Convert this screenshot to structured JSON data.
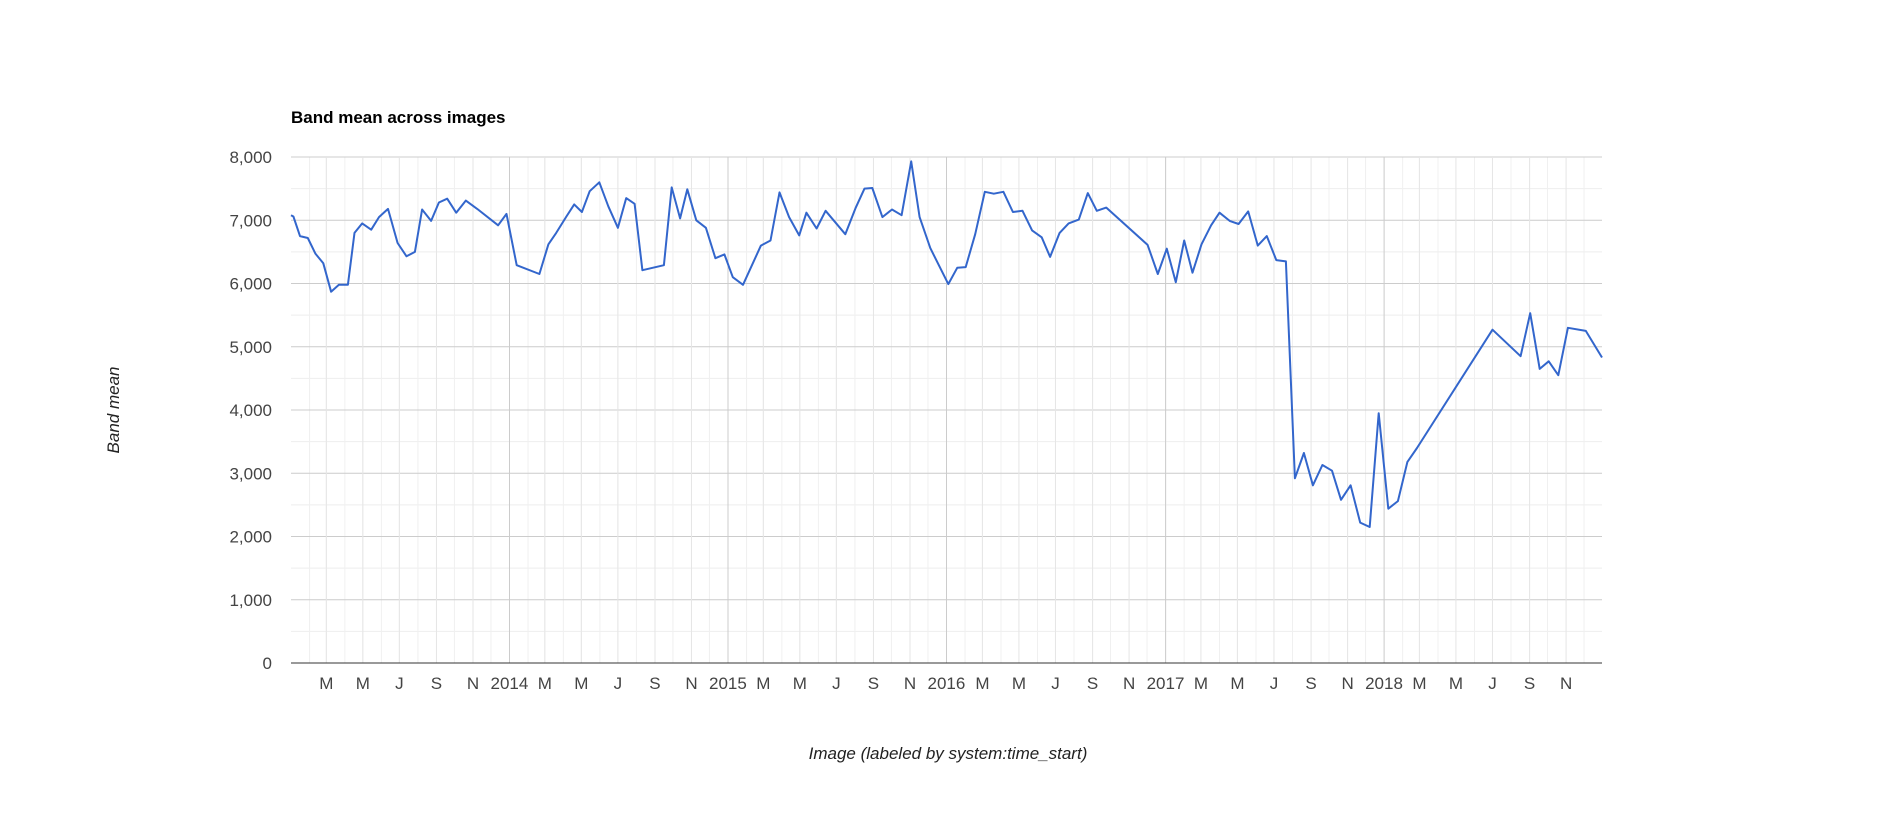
{
  "chart_data": {
    "type": "line",
    "title": "Band mean across images",
    "xlabel": "Image (labeled by system:time_start)",
    "ylabel": "Band mean",
    "ylim": [
      0,
      8000
    ],
    "yticks": [
      0,
      1000,
      2000,
      3000,
      4000,
      5000,
      6000,
      7000,
      8000
    ],
    "ytick_labels": [
      "0",
      "1,000",
      "2,000",
      "3,000",
      "4,000",
      "5,000",
      "6,000",
      "7,000",
      "8,000"
    ],
    "xlim": [
      "2013-01-01",
      "2018-12-31"
    ],
    "xticks": [
      {
        "date": "2013-03-01",
        "label": "M",
        "major": false
      },
      {
        "date": "2013-05-01",
        "label": "M",
        "major": false
      },
      {
        "date": "2013-07-01",
        "label": "J",
        "major": false
      },
      {
        "date": "2013-09-01",
        "label": "S",
        "major": false
      },
      {
        "date": "2013-11-01",
        "label": "N",
        "major": false
      },
      {
        "date": "2014-01-01",
        "label": "2014",
        "major": true
      },
      {
        "date": "2014-03-01",
        "label": "M",
        "major": false
      },
      {
        "date": "2014-05-01",
        "label": "M",
        "major": false
      },
      {
        "date": "2014-07-01",
        "label": "J",
        "major": false
      },
      {
        "date": "2014-09-01",
        "label": "S",
        "major": false
      },
      {
        "date": "2014-11-01",
        "label": "N",
        "major": false
      },
      {
        "date": "2015-01-01",
        "label": "2015",
        "major": true
      },
      {
        "date": "2015-03-01",
        "label": "M",
        "major": false
      },
      {
        "date": "2015-05-01",
        "label": "M",
        "major": false
      },
      {
        "date": "2015-07-01",
        "label": "J",
        "major": false
      },
      {
        "date": "2015-09-01",
        "label": "S",
        "major": false
      },
      {
        "date": "2015-11-01",
        "label": "N",
        "major": false
      },
      {
        "date": "2016-01-01",
        "label": "2016",
        "major": true
      },
      {
        "date": "2016-03-01",
        "label": "M",
        "major": false
      },
      {
        "date": "2016-05-01",
        "label": "M",
        "major": false
      },
      {
        "date": "2016-07-01",
        "label": "J",
        "major": false
      },
      {
        "date": "2016-09-01",
        "label": "S",
        "major": false
      },
      {
        "date": "2016-11-01",
        "label": "N",
        "major": false
      },
      {
        "date": "2017-01-01",
        "label": "2017",
        "major": true
      },
      {
        "date": "2017-03-01",
        "label": "M",
        "major": false
      },
      {
        "date": "2017-05-01",
        "label": "M",
        "major": false
      },
      {
        "date": "2017-07-01",
        "label": "J",
        "major": false
      },
      {
        "date": "2017-09-01",
        "label": "S",
        "major": false
      },
      {
        "date": "2017-11-01",
        "label": "N",
        "major": false
      },
      {
        "date": "2018-01-01",
        "label": "2018",
        "major": true
      },
      {
        "date": "2018-03-01",
        "label": "M",
        "major": false
      },
      {
        "date": "2018-05-01",
        "label": "M",
        "major": false
      },
      {
        "date": "2018-07-01",
        "label": "J",
        "major": false
      },
      {
        "date": "2018-09-01",
        "label": "S",
        "major": false
      },
      {
        "date": "2018-11-01",
        "label": "N",
        "major": false
      }
    ],
    "grid": true,
    "legend": "none",
    "series": [
      {
        "color": "#3366cc",
        "points": [
          [
            "2013-01-01",
            7080
          ],
          [
            "2013-01-05",
            7060
          ],
          [
            "2013-01-16",
            6750
          ],
          [
            "2013-01-29",
            6720
          ],
          [
            "2013-02-11",
            6470
          ],
          [
            "2013-02-24",
            6320
          ],
          [
            "2013-03-09",
            5870
          ],
          [
            "2013-03-22",
            5980
          ],
          [
            "2013-04-06",
            5980
          ],
          [
            "2013-04-17",
            6800
          ],
          [
            "2013-04-30",
            6950
          ],
          [
            "2013-05-15",
            6850
          ],
          [
            "2013-05-28",
            7050
          ],
          [
            "2013-06-12",
            7180
          ],
          [
            "2013-06-28",
            6640
          ],
          [
            "2013-07-13",
            6430
          ],
          [
            "2013-07-27",
            6500
          ],
          [
            "2013-08-08",
            7170
          ],
          [
            "2013-08-23",
            6990
          ],
          [
            "2013-09-05",
            7280
          ],
          [
            "2013-09-19",
            7340
          ],
          [
            "2013-10-04",
            7120
          ],
          [
            "2013-10-20",
            7310
          ],
          [
            "2013-11-08",
            7180
          ],
          [
            "2013-12-13",
            6920
          ],
          [
            "2013-12-27",
            7100
          ],
          [
            "2014-01-13",
            6290
          ],
          [
            "2014-02-20",
            6150
          ],
          [
            "2014-03-07",
            6620
          ],
          [
            "2014-03-20",
            6800
          ],
          [
            "2014-04-06",
            7060
          ],
          [
            "2014-04-19",
            7250
          ],
          [
            "2014-05-02",
            7130
          ],
          [
            "2014-05-15",
            7460
          ],
          [
            "2014-05-31",
            7600
          ],
          [
            "2014-06-15",
            7220
          ],
          [
            "2014-07-01",
            6880
          ],
          [
            "2014-07-15",
            7350
          ],
          [
            "2014-07-29",
            7260
          ],
          [
            "2014-08-11",
            6210
          ],
          [
            "2014-09-16",
            6290
          ],
          [
            "2014-09-29",
            7520
          ],
          [
            "2014-10-13",
            7030
          ],
          [
            "2014-10-25",
            7490
          ],
          [
            "2014-11-09",
            7000
          ],
          [
            "2014-11-25",
            6880
          ],
          [
            "2014-12-11",
            6400
          ],
          [
            "2014-12-26",
            6460
          ],
          [
            "2015-01-09",
            6100
          ],
          [
            "2015-01-26",
            5980
          ],
          [
            "2015-02-25",
            6600
          ],
          [
            "2015-03-13",
            6680
          ],
          [
            "2015-03-28",
            7440
          ],
          [
            "2015-04-13",
            7050
          ],
          [
            "2015-04-30",
            6760
          ],
          [
            "2015-05-12",
            7120
          ],
          [
            "2015-05-29",
            6870
          ],
          [
            "2015-06-13",
            7150
          ],
          [
            "2015-07-16",
            6780
          ],
          [
            "2015-08-02",
            7190
          ],
          [
            "2015-08-17",
            7500
          ],
          [
            "2015-08-30",
            7510
          ],
          [
            "2015-09-16",
            7050
          ],
          [
            "2015-10-02",
            7170
          ],
          [
            "2015-10-18",
            7080
          ],
          [
            "2015-11-03",
            7930
          ],
          [
            "2015-11-17",
            7050
          ],
          [
            "2015-12-05",
            6560
          ],
          [
            "2016-01-04",
            5990
          ],
          [
            "2016-01-19",
            6250
          ],
          [
            "2016-02-02",
            6260
          ],
          [
            "2016-02-18",
            6780
          ],
          [
            "2016-03-05",
            7450
          ],
          [
            "2016-03-20",
            7420
          ],
          [
            "2016-04-05",
            7450
          ],
          [
            "2016-04-21",
            7130
          ],
          [
            "2016-05-07",
            7150
          ],
          [
            "2016-05-23",
            6840
          ],
          [
            "2016-06-08",
            6730
          ],
          [
            "2016-06-22",
            6420
          ],
          [
            "2016-07-08",
            6800
          ],
          [
            "2016-07-23",
            6950
          ],
          [
            "2016-08-09",
            7010
          ],
          [
            "2016-08-24",
            7430
          ],
          [
            "2016-09-08",
            7150
          ],
          [
            "2016-09-24",
            7200
          ],
          [
            "2016-12-02",
            6610
          ],
          [
            "2016-12-19",
            6150
          ],
          [
            "2017-01-03",
            6550
          ],
          [
            "2017-01-18",
            6020
          ],
          [
            "2017-02-01",
            6680
          ],
          [
            "2017-02-15",
            6170
          ],
          [
            "2017-03-02",
            6620
          ],
          [
            "2017-03-18",
            6920
          ],
          [
            "2017-04-01",
            7120
          ],
          [
            "2017-04-18",
            6990
          ],
          [
            "2017-05-03",
            6940
          ],
          [
            "2017-05-19",
            7140
          ],
          [
            "2017-06-04",
            6600
          ],
          [
            "2017-06-19",
            6750
          ],
          [
            "2017-07-05",
            6370
          ],
          [
            "2017-07-21",
            6350
          ],
          [
            "2017-08-05",
            2920
          ],
          [
            "2017-08-20",
            3320
          ],
          [
            "2017-09-04",
            2810
          ],
          [
            "2017-09-20",
            3130
          ],
          [
            "2017-10-06",
            3040
          ],
          [
            "2017-10-21",
            2580
          ],
          [
            "2017-11-06",
            2810
          ],
          [
            "2017-11-22",
            2220
          ],
          [
            "2017-12-08",
            2150
          ],
          [
            "2017-12-23",
            3950
          ],
          [
            "2018-01-08",
            2440
          ],
          [
            "2018-01-24",
            2560
          ],
          [
            "2018-02-09",
            3180
          ],
          [
            "2018-02-25",
            3400
          ],
          [
            "2018-07-01",
            5270
          ],
          [
            "2018-08-17",
            4850
          ],
          [
            "2018-09-02",
            5530
          ],
          [
            "2018-09-18",
            4650
          ],
          [
            "2018-10-03",
            4770
          ],
          [
            "2018-10-19",
            4550
          ],
          [
            "2018-11-04",
            5300
          ],
          [
            "2018-12-04",
            5250
          ],
          [
            "2018-12-31",
            4830
          ]
        ]
      }
    ]
  }
}
